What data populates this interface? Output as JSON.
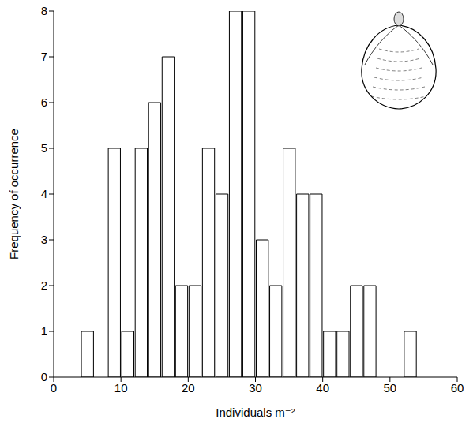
{
  "chart_data": {
    "type": "histogram",
    "bins": [
      4,
      6,
      8,
      10,
      12,
      14,
      16,
      18,
      20,
      22,
      24,
      26,
      28,
      30,
      32,
      34,
      36,
      38,
      40,
      42,
      44,
      46,
      48,
      50,
      52,
      54
    ],
    "values": [
      1,
      0,
      5,
      1,
      5,
      6,
      7,
      2,
      2,
      5,
      4,
      8,
      8,
      3,
      2,
      5,
      4,
      4,
      1,
      1,
      2,
      2,
      0,
      0,
      1
    ],
    "xlim": [
      0,
      60
    ],
    "xticks": [
      0,
      10,
      20,
      30,
      40,
      50,
      60
    ],
    "ylim": [
      0,
      8
    ],
    "yticks": [
      0,
      1,
      2,
      3,
      4,
      5,
      6,
      7,
      8
    ],
    "x_label": "Individuals m⁻²",
    "y_label": "Frequency of occurrence",
    "color": "#ffffff"
  }
}
